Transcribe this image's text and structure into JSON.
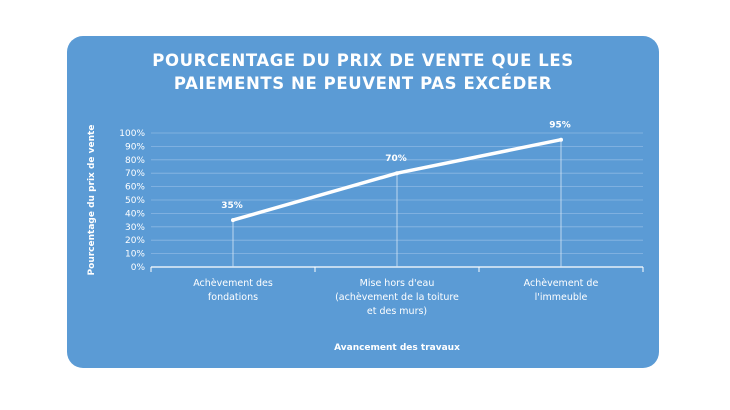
{
  "chart_data": {
    "type": "line",
    "title": [
      "POURCENTAGE DU PRIX DE VENTE QUE LES",
      "PAIEMENTS NE PEUVENT PAS EXCÉDER"
    ],
    "xlabel": "Avancement des travaux",
    "ylabel": "Pourcentage du prix de vente",
    "yticks": [
      "0%",
      "10%",
      "20%",
      "30%",
      "40%",
      "50%",
      "60%",
      "70%",
      "80%",
      "90%",
      "100%"
    ],
    "ylim": [
      0,
      100
    ],
    "categories": [
      [
        "Achèvement des",
        "fondations"
      ],
      [
        "Mise hors d'eau",
        "(achèvement de la toiture",
        "et des murs)"
      ],
      [
        "Achèvement de",
        "l'immeuble"
      ]
    ],
    "values": [
      35,
      70,
      95
    ],
    "data_labels": [
      "35%",
      "70%",
      "95%"
    ],
    "grid": true,
    "colors": {
      "background": "#5b9bd5",
      "line": "#ffffff",
      "grid": "#8bb8e3"
    }
  }
}
